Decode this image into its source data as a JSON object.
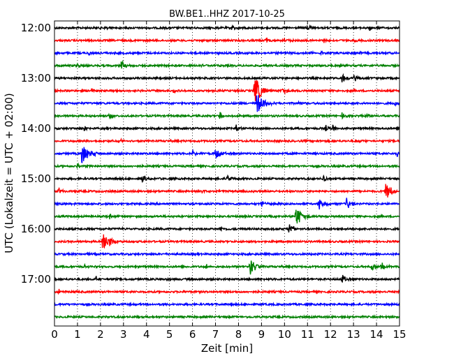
{
  "chart_data": {
    "type": "line",
    "title": "BW.BE1..HHZ 2017-10-25",
    "xlabel": "Zeit  [min]",
    "ylabel": "UTC (Lokalzeit = UTC + 02:00)",
    "xlim": [
      0,
      15
    ],
    "x_ticks": [
      "0",
      "1",
      "2",
      "3",
      "4",
      "5",
      "6",
      "7",
      "8",
      "9",
      "10",
      "11",
      "12",
      "13",
      "14",
      "15"
    ],
    "y_ticks": [
      "12:00",
      "13:00",
      "14:00",
      "15:00",
      "16:00",
      "17:00"
    ],
    "grid": "vertical dotted",
    "trace_start_utc": "12:00",
    "trace_interval_min": 15,
    "colors_cycle": [
      "#000000",
      "#ff0000",
      "#0000ff",
      "#008000"
    ],
    "traces": [
      {
        "start": "12:00",
        "color": "#000000",
        "events": [
          {
            "t": 2.2,
            "amp": 0.3
          },
          {
            "t": 7.7,
            "amp": 0.5
          },
          {
            "t": 11.0,
            "amp": 0.4
          },
          {
            "t": 13.7,
            "amp": 0.4
          }
        ]
      },
      {
        "start": "12:15",
        "color": "#ff0000",
        "events": [
          {
            "t": 9.2,
            "amp": 0.3
          },
          {
            "t": 10.0,
            "amp": 0.3
          },
          {
            "t": 11.7,
            "amp": 0.3
          },
          {
            "t": 13.0,
            "amp": 0.3
          }
        ]
      },
      {
        "start": "12:30",
        "color": "#0000ff",
        "events": [
          {
            "t": 1.5,
            "amp": 0.3
          },
          {
            "t": 11.1,
            "amp": 0.3
          },
          {
            "t": 11.6,
            "amp": 0.3
          },
          {
            "t": 13.3,
            "amp": 0.3
          }
        ]
      },
      {
        "start": "12:45",
        "color": "#008000",
        "events": [
          {
            "t": 1.0,
            "amp": 0.3
          },
          {
            "t": 2.9,
            "amp": 0.7
          },
          {
            "t": 6.4,
            "amp": 0.3
          }
        ]
      },
      {
        "start": "13:00",
        "color": "#000000",
        "events": [
          {
            "t": 12.5,
            "amp": 0.6
          },
          {
            "t": 13.0,
            "amp": 0.6
          }
        ]
      },
      {
        "start": "13:15",
        "color": "#ff0000",
        "events": [
          {
            "t": 8.7,
            "amp": 1.8
          },
          {
            "t": 1.6,
            "amp": 0.3
          },
          {
            "t": 5.2,
            "amp": 0.3
          },
          {
            "t": 9.9,
            "amp": 0.6
          }
        ]
      },
      {
        "start": "13:30",
        "color": "#0000ff",
        "events": [
          {
            "t": 8.8,
            "amp": 1.5
          },
          {
            "t": 10.6,
            "amp": 0.3
          },
          {
            "t": 14.8,
            "amp": 0.3
          }
        ]
      },
      {
        "start": "13:45",
        "color": "#008000",
        "events": [
          {
            "t": 2.4,
            "amp": 0.3
          },
          {
            "t": 7.2,
            "amp": 0.6
          },
          {
            "t": 12.5,
            "amp": 0.4
          },
          {
            "t": 13.6,
            "amp": 0.3
          }
        ]
      },
      {
        "start": "14:00",
        "color": "#000000",
        "events": [
          {
            "t": 1.3,
            "amp": 0.3
          },
          {
            "t": 7.9,
            "amp": 0.4
          },
          {
            "t": 11.8,
            "amp": 0.4
          },
          {
            "t": 12.1,
            "amp": 0.4
          }
        ]
      },
      {
        "start": "14:15",
        "color": "#ff0000",
        "events": [
          {
            "t": 2.8,
            "amp": 0.4
          },
          {
            "t": 13.1,
            "amp": 0.3
          }
        ]
      },
      {
        "start": "14:30",
        "color": "#0000ff",
        "events": [
          {
            "t": 1.2,
            "amp": 1.6
          },
          {
            "t": 6.0,
            "amp": 0.5
          },
          {
            "t": 7.0,
            "amp": 0.8
          },
          {
            "t": 14.9,
            "amp": 0.4
          }
        ]
      },
      {
        "start": "14:45",
        "color": "#008000",
        "events": [
          {
            "t": 1.0,
            "amp": 0.3
          }
        ]
      },
      {
        "start": "15:00",
        "color": "#000000",
        "events": [
          {
            "t": 3.8,
            "amp": 0.5
          },
          {
            "t": 7.5,
            "amp": 0.5
          },
          {
            "t": 11.7,
            "amp": 0.5
          }
        ]
      },
      {
        "start": "15:15",
        "color": "#ff0000",
        "events": [
          {
            "t": 0.2,
            "amp": 0.4
          },
          {
            "t": 6.4,
            "amp": 0.3
          },
          {
            "t": 14.4,
            "amp": 1.2
          }
        ]
      },
      {
        "start": "15:30",
        "color": "#0000ff",
        "events": [
          {
            "t": 9.0,
            "amp": 0.5
          },
          {
            "t": 11.5,
            "amp": 0.8
          },
          {
            "t": 12.7,
            "amp": 0.8
          }
        ]
      },
      {
        "start": "15:45",
        "color": "#008000",
        "events": [
          {
            "t": 10.5,
            "amp": 1.4
          },
          {
            "t": 2.4,
            "amp": 0.3
          }
        ]
      },
      {
        "start": "16:00",
        "color": "#000000",
        "events": [
          {
            "t": 2.8,
            "amp": 0.3
          },
          {
            "t": 7.2,
            "amp": 0.3
          },
          {
            "t": 10.2,
            "amp": 0.8
          }
        ]
      },
      {
        "start": "16:15",
        "color": "#ff0000",
        "events": [
          {
            "t": 2.1,
            "amp": 1.6
          }
        ]
      },
      {
        "start": "16:30",
        "color": "#0000ff",
        "events": []
      },
      {
        "start": "16:45",
        "color": "#008000",
        "events": [
          {
            "t": 1.3,
            "amp": 0.3
          },
          {
            "t": 6.6,
            "amp": 0.3
          },
          {
            "t": 8.5,
            "amp": 1.2
          },
          {
            "t": 13.8,
            "amp": 0.6
          },
          {
            "t": 14.2,
            "amp": 0.6
          }
        ]
      },
      {
        "start": "17:00",
        "color": "#000000",
        "events": [
          {
            "t": 1.8,
            "amp": 0.4
          },
          {
            "t": 12.5,
            "amp": 0.6
          }
        ]
      },
      {
        "start": "17:15",
        "color": "#ff0000",
        "events": [
          {
            "t": 0.2,
            "amp": 0.3
          }
        ]
      },
      {
        "start": "17:30",
        "color": "#0000ff",
        "events": []
      },
      {
        "start": "17:45",
        "color": "#008000",
        "events": []
      }
    ]
  }
}
